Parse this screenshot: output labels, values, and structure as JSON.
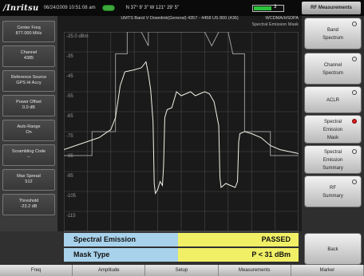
{
  "status": {
    "logo": "/Inritsu",
    "datetime": "06/24/2009 10:51:08 am",
    "coords": "N 37° 9' 3\" W 121° 29' 5\"",
    "battery_level": 0.6,
    "battery_label": "3",
    "menu_title": "RF Measurements"
  },
  "header": {
    "band_line": "UMTS Band V Downlink(General) 4357 - 4458 US 800 (436)",
    "mode": "WCDMA/HSDPA",
    "measurement": "Spectral Emission Mask"
  },
  "left_params": [
    {
      "label": "Center Freq",
      "value": "877.000 MHz"
    },
    {
      "label": "Channel",
      "value": "4385"
    },
    {
      "label": "Reference Source",
      "value": "GPS Hi Accy"
    },
    {
      "label": "Power Offset",
      "value": "0.0 dB"
    },
    {
      "label": "Auto Range",
      "value": "On"
    },
    {
      "label": "Scrambling Code",
      "value": "--"
    },
    {
      "label": "Max Spread",
      "value": "512"
    },
    {
      "label": "Threshold",
      "value": "-23.2 dB"
    }
  ],
  "chart_data": {
    "type": "line",
    "y_tick_labels": [
      "-25.0 dBm",
      "-35",
      "-45",
      "-55",
      "-65",
      "-75",
      "-85",
      "-95",
      "-105",
      "-115"
    ],
    "ylim": [
      -125,
      -25
    ],
    "grid": true,
    "trace_color": "#f2f2e8",
    "mask_color": "#9a9a9a"
  },
  "results": {
    "row1_label": "Spectral Emission",
    "row1_value": "PASSED",
    "row2_label": "Mask Type",
    "row2_value": "P < 31 dBm"
  },
  "softkeys": [
    {
      "line1": "Band",
      "line2": "Spectrum",
      "line3": "",
      "active": false
    },
    {
      "line1": "Channel",
      "line2": "Spectrum",
      "line3": "",
      "active": false
    },
    {
      "line1": "",
      "line2": "ACLR",
      "line3": "",
      "active": false
    },
    {
      "line1": "Spectral",
      "line2": "Emission",
      "line3": "Mask",
      "active": true
    },
    {
      "line1": "Spectral",
      "line2": "Emission",
      "line3": "Summary",
      "active": false
    },
    {
      "line1": "RF",
      "line2": "Summary",
      "line3": "",
      "active": false
    },
    {
      "line1": "Back",
      "line2": "",
      "line3": "",
      "active": false
    }
  ],
  "bottom_menu": [
    "Freq",
    "Amplitude",
    "Setup",
    "Measurements",
    "Marker"
  ]
}
